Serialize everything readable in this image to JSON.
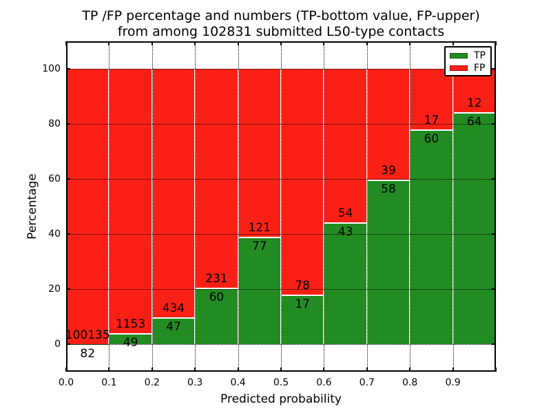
{
  "title": {
    "line1": "TP /FP percentage and numbers (TP-bottom value, FP-upper)",
    "line2": "from among 102831 submitted L50-type contacts"
  },
  "axes": {
    "x_label": "Predicted probability",
    "y_label": "Percentage",
    "x_tick_labels": [
      "0.0",
      "0.1",
      "0.2",
      "0.3",
      "0.4",
      "0.5",
      "0.6",
      "0.7",
      "0.8",
      "0.9"
    ],
    "y_tick_labels": [
      "0",
      "20",
      "40",
      "60",
      "80",
      "100"
    ],
    "y_tick_values": [
      0,
      20,
      40,
      60,
      80,
      100
    ]
  },
  "legend": {
    "items": [
      {
        "label": "TP",
        "color": "#228b22",
        "edge": "#11500f"
      },
      {
        "label": "FP",
        "color": "#fb2015",
        "edge": "#8e0f08"
      }
    ]
  },
  "colors": {
    "tp": "#228b22",
    "fp": "#fb2015",
    "grid": "#000000",
    "background": "#ffffff"
  },
  "chart_data": {
    "type": "bar",
    "stacked": true,
    "normalized_to_percent": true,
    "title": "TP /FP percentage and numbers (TP-bottom value, FP-upper) from among 102831 submitted L50-type contacts",
    "xlabel": "Predicted probability",
    "ylabel": "Percentage",
    "xlim": [
      0.0,
      1.0
    ],
    "ylim": [
      -10,
      110
    ],
    "grid": "dotted",
    "legend_position": "upper right",
    "bins": [
      "0.0-0.1",
      "0.1-0.2",
      "0.2-0.3",
      "0.3-0.4",
      "0.4-0.5",
      "0.5-0.6",
      "0.6-0.7",
      "0.7-0.8",
      "0.8-0.9",
      "0.9-1.0"
    ],
    "series": [
      {
        "name": "TP",
        "counts": [
          82,
          49,
          47,
          60,
          77,
          17,
          43,
          58,
          60,
          64
        ]
      },
      {
        "name": "FP",
        "counts": [
          100135,
          1153,
          434,
          231,
          121,
          78,
          54,
          39,
          17,
          12
        ]
      }
    ],
    "tp_percent": [
      0.08,
      4.08,
      9.77,
      20.62,
      38.89,
      17.89,
      44.33,
      59.79,
      77.92,
      84.21
    ],
    "total_contacts": 102831
  }
}
